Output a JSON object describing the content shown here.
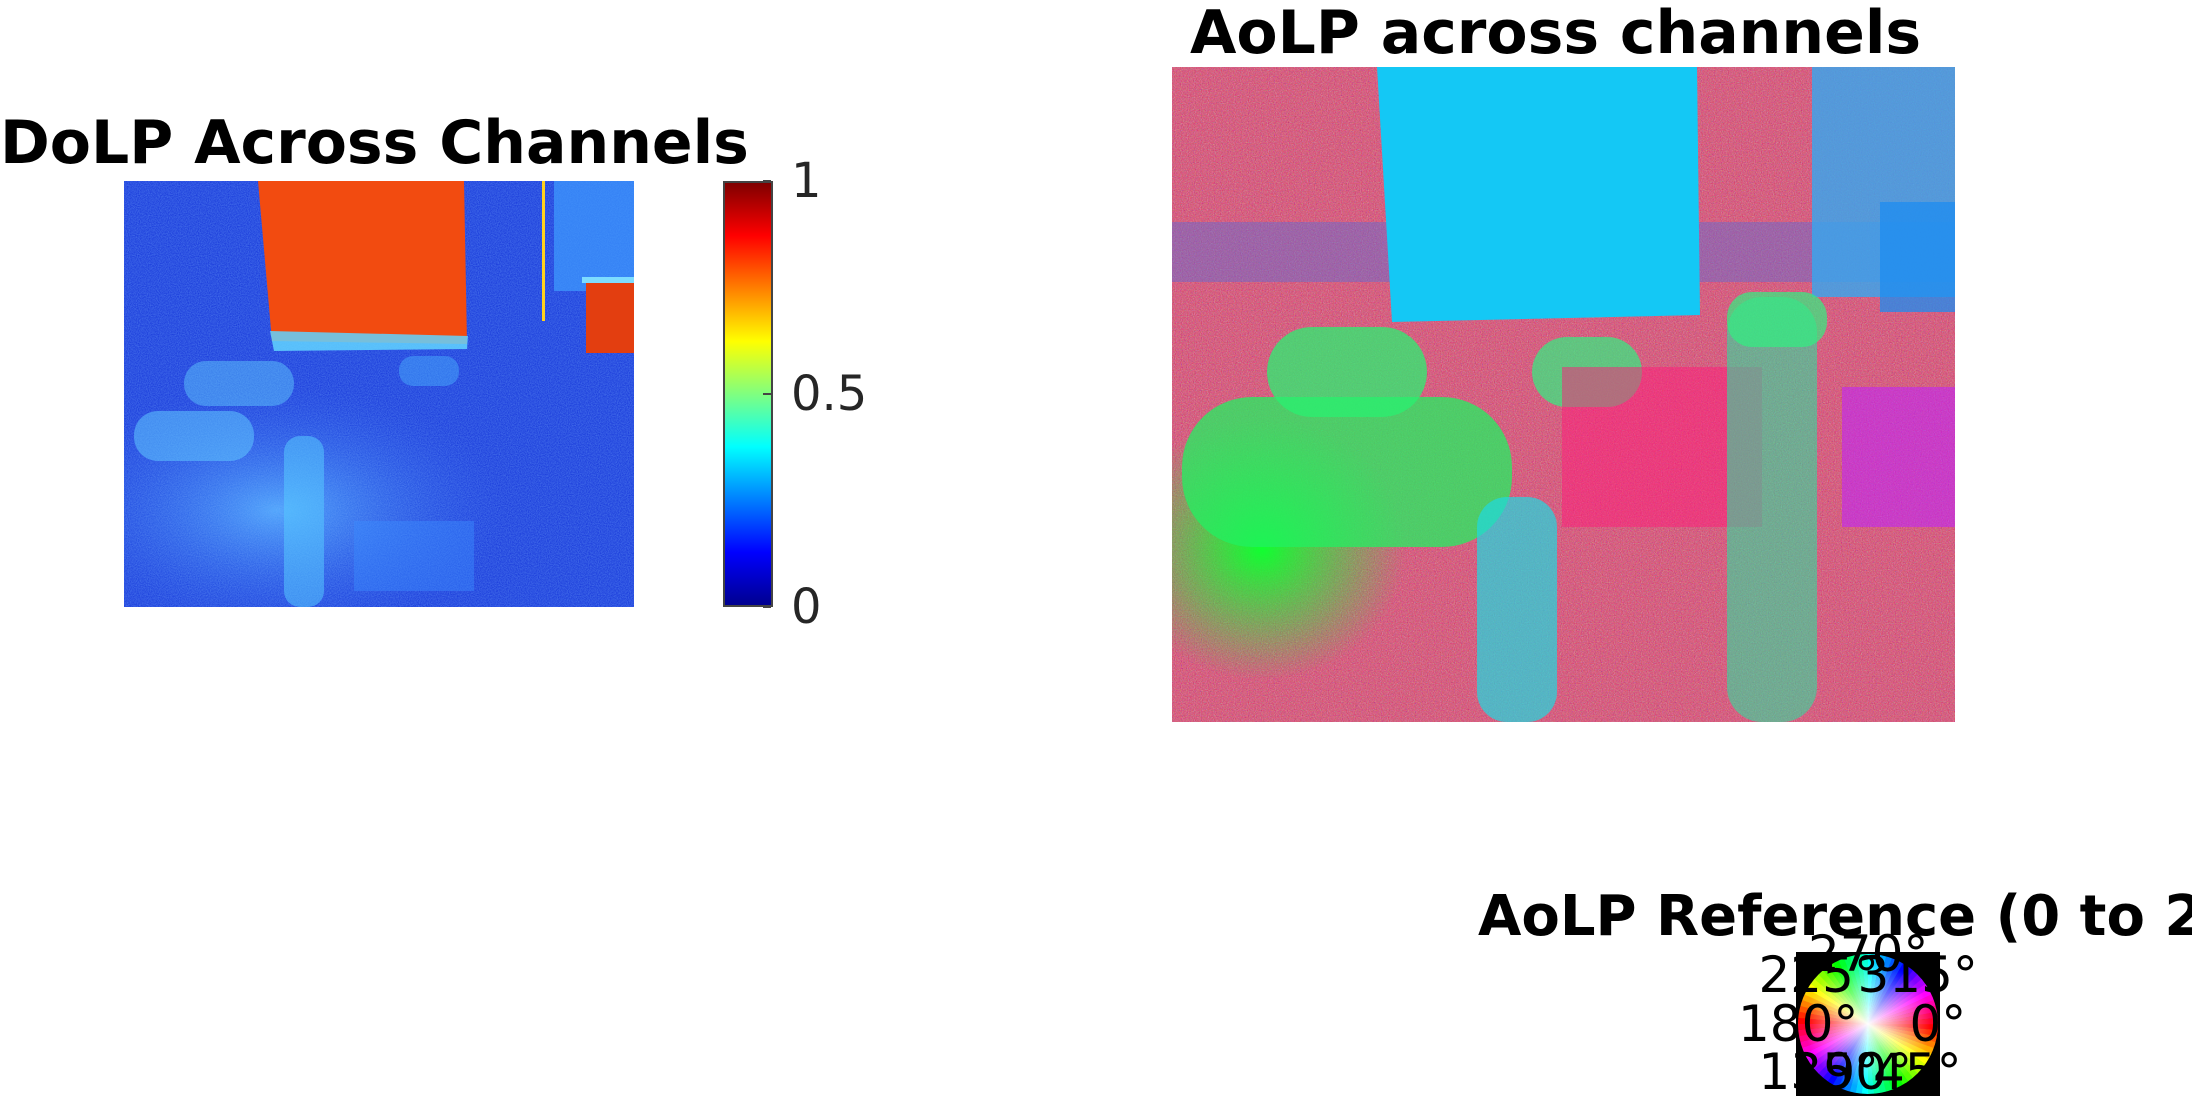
{
  "chart_data": [
    {
      "type": "heatmap",
      "title": "DoLP Across Channels",
      "colormap": "jet",
      "colorbar": {
        "ticks": [
          {
            "value": 1,
            "label": "1"
          },
          {
            "value": 0.5,
            "label": "0.5"
          },
          {
            "value": 0,
            "label": "0"
          }
        ],
        "range": [
          0,
          1
        ]
      }
    },
    {
      "type": "heatmap",
      "title": "AoLP across channels",
      "colormap": "hsv"
    },
    {
      "type": "heatmap",
      "title": "AoLP Reference (0 to 2",
      "colormap": "hsv",
      "angle_labels": [
        {
          "deg": 270,
          "label": "270°"
        },
        {
          "deg": 225,
          "label": "225°"
        },
        {
          "deg": 315,
          "label": "315°"
        },
        {
          "deg": 180,
          "label": "180°"
        },
        {
          "deg": 0,
          "label": "0°"
        },
        {
          "deg": 135,
          "label": "135°"
        },
        {
          "deg": 45,
          "label": "45°"
        },
        {
          "deg": 90,
          "label": "90°"
        }
      ]
    }
  ]
}
